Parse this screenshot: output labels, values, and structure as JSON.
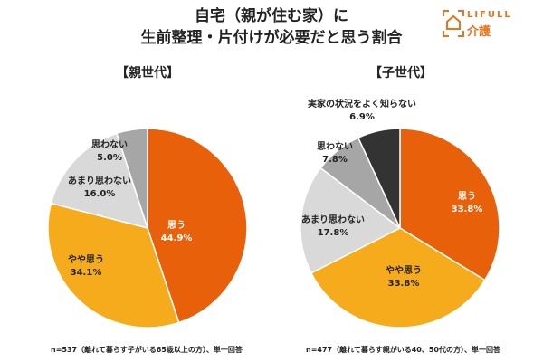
{
  "title_lines": [
    "自宅（親が住む家）に",
    "生前整理・片付けが必要だと思う割合"
  ],
  "logo": {
    "brand": "LIFULL",
    "sub": "介護"
  },
  "colors": {
    "orange": "#E8600A",
    "yellow": "#F6AB1D",
    "lightgray": "#D9D9D9",
    "gray": "#A6A6A6",
    "dark": "#333333"
  },
  "chart_data": [
    {
      "type": "pie",
      "title": "【親世代】",
      "note": "n=537（離れて暮らす子がいる65歳以上の方）、単一回答",
      "slices": [
        {
          "label": "思う",
          "value": 44.9,
          "display": "44.9%",
          "color": "#E8600A"
        },
        {
          "label": "やや思う",
          "value": 34.1,
          "display": "34.1%",
          "color": "#F6AB1D"
        },
        {
          "label": "あまり思わない",
          "value": 16.0,
          "display": "16.0%",
          "color": "#D9D9D9"
        },
        {
          "label": "思わない",
          "value": 5.0,
          "display": "5.0%",
          "color": "#A6A6A6"
        }
      ]
    },
    {
      "type": "pie",
      "title": "【子世代】",
      "note": "n=477（離れて暮らす親がいる40、50代の方）、単一回答",
      "slices": [
        {
          "label": "思う",
          "value": 33.8,
          "display": "33.8%",
          "color": "#E8600A"
        },
        {
          "label": "やや思う",
          "value": 33.8,
          "display": "33.8%",
          "color": "#F6AB1D"
        },
        {
          "label": "あまり思わない",
          "value": 17.8,
          "display": "17.8%",
          "color": "#D9D9D9"
        },
        {
          "label": "思わない",
          "value": 7.8,
          "display": "7.8%",
          "color": "#A6A6A6"
        },
        {
          "label": "実家の状況をよく知らない",
          "value": 6.9,
          "display": "6.9%",
          "color": "#333333"
        }
      ]
    }
  ]
}
